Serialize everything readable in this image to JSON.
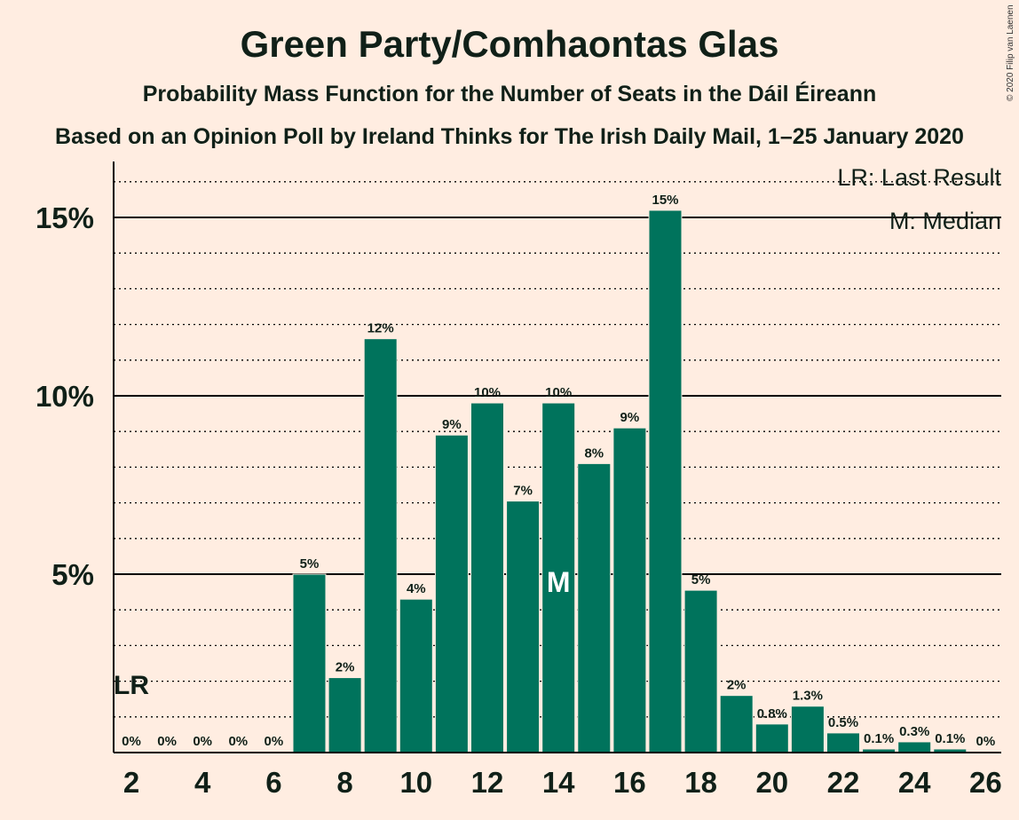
{
  "title": "Green Party/Comhaontas Glas",
  "subtitle": "Probability Mass Function for the Number of Seats in the Dáil Éireann",
  "subtitle2": "Based on an Opinion Poll by Ireland Thinks for The Irish Daily Mail, 1–25 January 2020",
  "copyright": "© 2020 Filip van Laenen",
  "legend": {
    "lr": "LR: Last Result",
    "median": "M: Median"
  },
  "colors": {
    "background": "#ffede1",
    "bar": "#00735c",
    "text": "#000000"
  },
  "chart_data": {
    "type": "bar",
    "x": [
      2,
      3,
      4,
      5,
      6,
      7,
      8,
      9,
      10,
      11,
      12,
      13,
      14,
      15,
      16,
      17,
      18,
      19,
      20,
      21,
      22,
      23,
      24,
      25,
      26
    ],
    "values": [
      0,
      0,
      0,
      0,
      0,
      5.0,
      2.1,
      11.6,
      4.3,
      8.9,
      9.8,
      7.05,
      9.8,
      8.1,
      9.1,
      15.2,
      4.55,
      1.6,
      0.8,
      1.3,
      0.55,
      0.1,
      0.3,
      0.1,
      0
    ],
    "data_labels": [
      "0%",
      "0%",
      "0%",
      "0%",
      "0%",
      "5%",
      "2%",
      "12%",
      "4%",
      "9%",
      "10%",
      "7%",
      "10%",
      "8%",
      "9%",
      "15%",
      "5%",
      "2%",
      "0.8%",
      "1.3%",
      "0.5%",
      "0.1%",
      "0.3%",
      "0.1%",
      "0%"
    ],
    "x_ticks": [
      "2",
      "4",
      "6",
      "8",
      "10",
      "12",
      "14",
      "16",
      "18",
      "20",
      "22",
      "24",
      "26"
    ],
    "y_ticks": [
      "5%",
      "10%",
      "15%"
    ],
    "ylim": [
      0,
      16.5
    ],
    "median_x": 14,
    "median_label": "M",
    "last_result_x": 2,
    "last_result_label": "LR",
    "grid": true,
    "legend_position": "top-right"
  }
}
